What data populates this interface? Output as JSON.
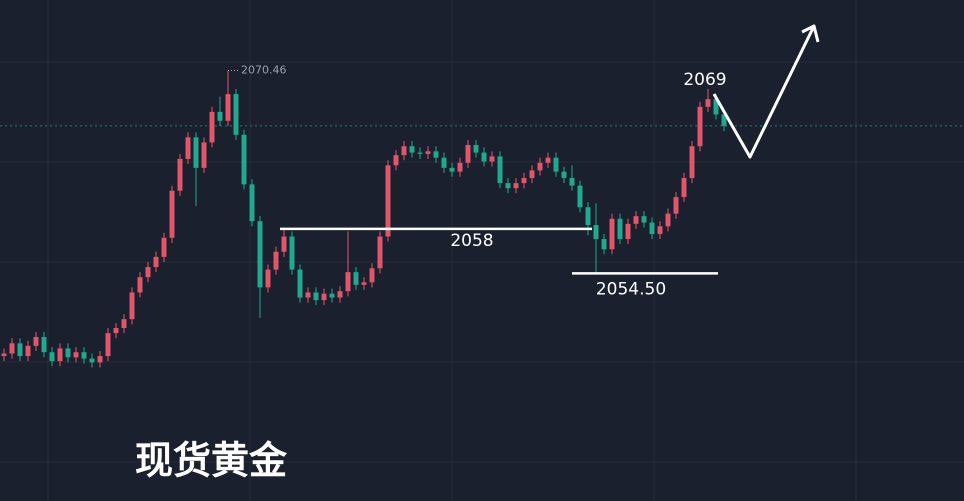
{
  "chart_data": {
    "type": "candlestick",
    "title": "现货黄金",
    "up_color": "#e0566a",
    "down_color": "#22a88f",
    "ylim": [
      2036.6,
      2076
    ],
    "open": [
      2048.0,
      2048.2,
      2049.0,
      2048.0,
      2048.8,
      2049.5,
      2048.3,
      2047.6,
      2048.6,
      2047.9,
      2048.3,
      2047.8,
      2047.5,
      2048.0,
      2049.8,
      2050.2,
      2050.9,
      2053.0,
      2054.2,
      2055.0,
      2055.8,
      2057.3,
      2061.0,
      2063.5,
      2065.2,
      2062.8,
      2064.8,
      2067.2,
      2066.5,
      2068.6,
      2065.4,
      2061.5,
      2058.6,
      2053.4,
      2054.8,
      2056.2,
      2057.4,
      2054.8,
      2052.6,
      2053.0,
      2052.4,
      2052.9,
      2052.6,
      2053.1,
      2054.6,
      2053.6,
      2053.8,
      2054.9,
      2057.4,
      2063.0,
      2063.8,
      2064.5,
      2064.0,
      2063.9,
      2064.1,
      2063.6,
      2062.8,
      2062.5,
      2063.2,
      2064.6,
      2064.0,
      2063.3,
      2063.7,
      2061.6,
      2061.2,
      2061.6,
      2062.0,
      2062.6,
      2063.2,
      2063.6,
      2062.5,
      2062.0,
      2061.4,
      2059.7,
      2058.3,
      2057.2,
      2056.4,
      2058.8,
      2057.2,
      2058.4,
      2059.0,
      2058.5,
      2057.6,
      2058.2,
      2059.2,
      2060.5,
      2062.0,
      2064.5,
      2067.6,
      2068.2,
      2067.0
    ],
    "high": [
      2048.6,
      2049.4,
      2049.4,
      2049.2,
      2049.9,
      2049.9,
      2048.7,
      2049.0,
      2049.0,
      2048.7,
      2048.7,
      2048.2,
      2048.4,
      2050.2,
      2050.6,
      2051.3,
      2053.4,
      2054.6,
      2055.4,
      2056.2,
      2057.7,
      2061.4,
      2063.9,
      2065.6,
      2065.6,
      2065.2,
      2067.6,
      2068.4,
      2070.46,
      2069.0,
      2065.8,
      2061.9,
      2059.0,
      2055.2,
      2056.6,
      2058.0,
      2057.8,
      2055.2,
      2053.4,
      2053.4,
      2053.3,
      2053.3,
      2053.5,
      2057.8,
      2055.0,
      2054.2,
      2055.3,
      2057.8,
      2063.4,
      2064.2,
      2064.9,
      2064.9,
      2064.4,
      2064.5,
      2064.5,
      2064.0,
      2063.2,
      2063.6,
      2065.0,
      2065.0,
      2064.4,
      2064.1,
      2064.1,
      2062.0,
      2062.0,
      2062.4,
      2063.0,
      2063.6,
      2064.0,
      2064.0,
      2062.9,
      2063.0,
      2061.8,
      2060.1,
      2060.0,
      2057.6,
      2059.2,
      2059.2,
      2058.8,
      2059.4,
      2059.4,
      2058.9,
      2058.6,
      2059.6,
      2060.9,
      2062.4,
      2064.9,
      2068.0,
      2069.0,
      2068.6,
      2067.4
    ],
    "low": [
      2047.6,
      2047.8,
      2047.6,
      2047.6,
      2048.4,
      2047.9,
      2047.2,
      2047.2,
      2047.5,
      2047.5,
      2047.4,
      2047.1,
      2047.1,
      2047.6,
      2049.4,
      2049.8,
      2050.5,
      2052.6,
      2053.8,
      2054.6,
      2055.4,
      2056.9,
      2060.6,
      2063.1,
      2059.8,
      2062.4,
      2064.4,
      2066.1,
      2066.1,
      2065.0,
      2061.1,
      2058.2,
      2051.0,
      2053.0,
      2054.4,
      2055.8,
      2054.4,
      2052.2,
      2052.2,
      2052.0,
      2052.0,
      2052.2,
      2052.2,
      2052.7,
      2053.2,
      2053.2,
      2053.4,
      2054.5,
      2057.0,
      2062.6,
      2063.4,
      2063.6,
      2063.5,
      2063.5,
      2063.2,
      2062.4,
      2062.1,
      2062.1,
      2062.8,
      2063.6,
      2062.9,
      2062.9,
      2061.2,
      2060.8,
      2060.8,
      2061.2,
      2061.6,
      2062.2,
      2062.8,
      2062.1,
      2061.6,
      2061.0,
      2059.3,
      2057.5,
      2054.5,
      2056.0,
      2056.0,
      2056.8,
      2056.8,
      2058.0,
      2058.1,
      2057.2,
      2057.2,
      2057.8,
      2058.8,
      2060.1,
      2061.6,
      2064.1,
      2067.2,
      2066.6,
      2065.7
    ],
    "close": [
      2048.2,
      2049.0,
      2048.0,
      2048.8,
      2049.5,
      2048.3,
      2047.6,
      2048.6,
      2047.9,
      2048.3,
      2047.8,
      2047.5,
      2048.0,
      2049.8,
      2050.2,
      2050.9,
      2053.0,
      2054.2,
      2055.0,
      2055.8,
      2057.3,
      2061.0,
      2063.5,
      2065.2,
      2062.8,
      2064.8,
      2067.2,
      2066.5,
      2068.6,
      2065.4,
      2061.5,
      2058.6,
      2053.4,
      2054.8,
      2056.2,
      2057.4,
      2054.8,
      2052.6,
      2053.0,
      2052.4,
      2052.9,
      2052.6,
      2053.1,
      2054.6,
      2053.6,
      2053.8,
      2054.9,
      2057.4,
      2063.0,
      2063.8,
      2064.5,
      2064.0,
      2063.9,
      2064.1,
      2063.6,
      2062.8,
      2062.5,
      2063.2,
      2064.6,
      2064.0,
      2063.3,
      2063.7,
      2061.6,
      2061.2,
      2061.6,
      2062.0,
      2062.6,
      2063.2,
      2063.6,
      2062.5,
      2062.0,
      2061.4,
      2059.7,
      2058.3,
      2057.2,
      2056.4,
      2058.8,
      2057.2,
      2058.4,
      2059.0,
      2058.5,
      2057.6,
      2058.2,
      2059.2,
      2060.5,
      2062.0,
      2064.5,
      2067.6,
      2068.2,
      2067.0,
      2066.1
    ],
    "annotations": [
      {
        "value": 2070.46,
        "label": "2070.46"
      },
      {
        "value": 2069,
        "label": "2069"
      },
      {
        "value": 2058,
        "label": "2058"
      },
      {
        "value": 2054.5,
        "label": "2054.50"
      }
    ]
  }
}
